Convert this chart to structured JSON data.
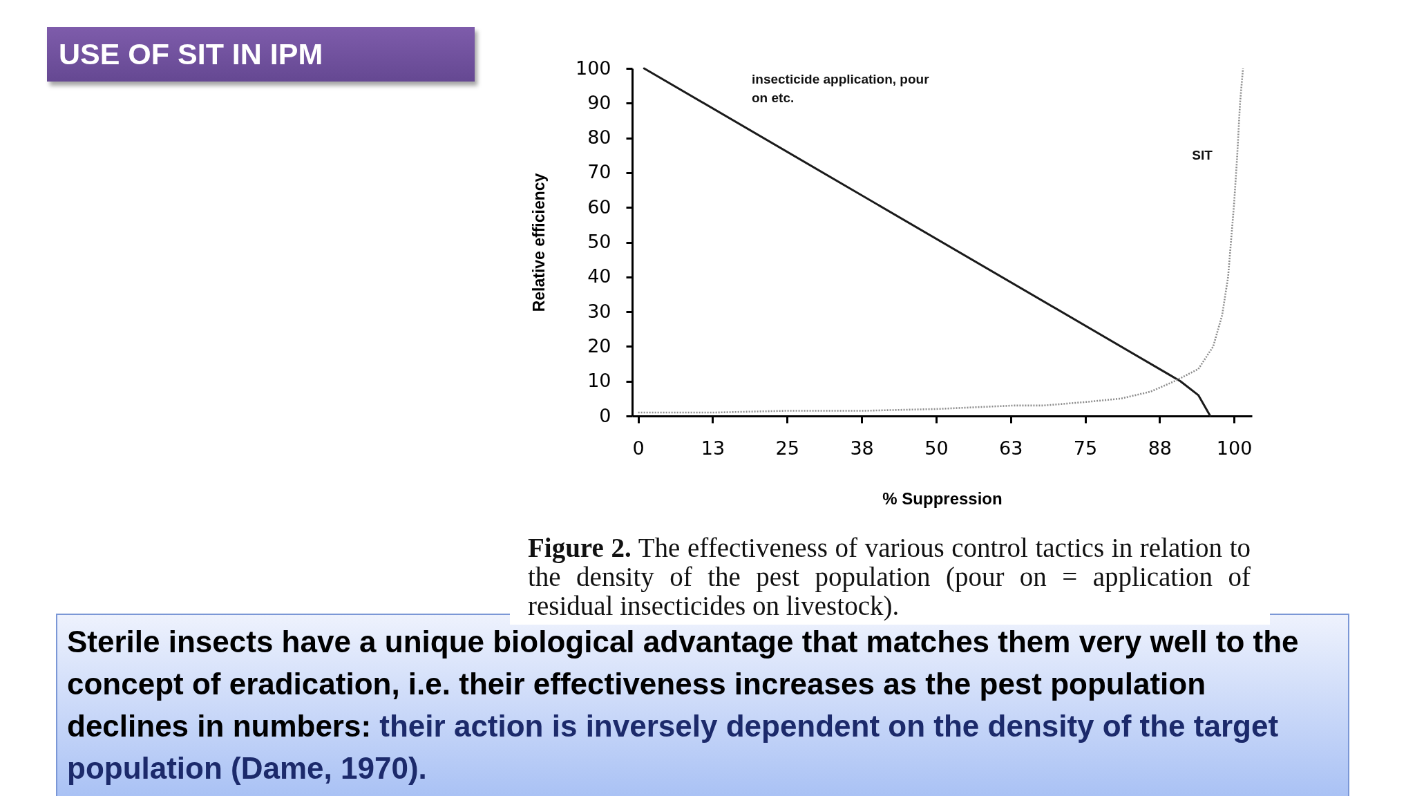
{
  "chart_data": {
    "type": "line",
    "title": "USE OF SIT IN IPM",
    "xlabel": "% Suppression",
    "ylabel": "Relative efficiency",
    "series": [
      {
        "name": "insecticide application, pour on etc.",
        "color": "#1a1a1a",
        "line_style": "solid",
        "x": [
          1,
          89,
          91,
          94,
          96
        ],
        "values": [
          100,
          12,
          10,
          6,
          0
        ]
      },
      {
        "name": "SIT",
        "color": "#8c8c8c",
        "line_style": "dotted",
        "x": [
          0,
          13,
          25,
          38,
          50,
          63,
          68,
          75,
          81,
          86,
          90,
          94,
          96.5,
          98,
          99,
          100,
          100.5,
          101,
          101.5
        ],
        "values": [
          1,
          1,
          1.5,
          1.5,
          2,
          3,
          3,
          4,
          5,
          7,
          10,
          13.5,
          20,
          29,
          40,
          61,
          74,
          90,
          100
        ]
      }
    ],
    "xlim": [
      -1,
      103
    ],
    "ylim": [
      0,
      100
    ],
    "xticks": [
      0,
      {
        "value": 12.5,
        "label": "13"
      },
      25,
      {
        "value": 37.5,
        "label": "38"
      },
      50,
      {
        "value": 62.5,
        "label": "63"
      },
      75,
      {
        "value": 87.5,
        "label": "88"
      },
      100
    ],
    "yticks": [
      0,
      10,
      20,
      30,
      40,
      50,
      60,
      70,
      80,
      90,
      100
    ],
    "annotations": [
      "Figure 2.",
      "The effectiveness of various control tactics in relation to the density of the pest population (pour on = application of residual insecticides on livestock).",
      "Sterile insects have a unique biological advantage that matches them very well to the",
      "concept of eradication, i.e. their effectiveness increases as the pest population",
      "declines in numbers:",
      "their action is inversely dependent on the density of the target",
      "population (Dame, 1970)."
    ]
  }
}
